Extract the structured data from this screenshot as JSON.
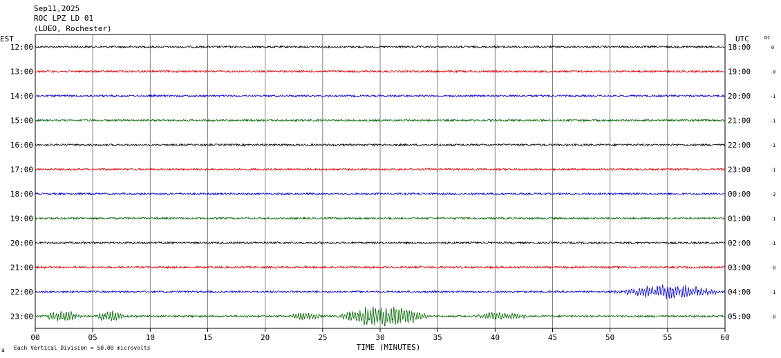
{
  "header": {
    "date": "Sep11,2025",
    "station": "ROC LPZ LD 01",
    "network": "(LDEO, Rochester)"
  },
  "left_axis_label": "EST",
  "right_axis_label": "UTC",
  "dc_label": "DC",
  "footer": {
    "scale_text": "Each Vertical Division =   50.00 microvolts",
    "corner_mark": "a"
  },
  "chart_data": {
    "type": "line",
    "xlabel": "TIME (MINUTES)",
    "xlim": [
      0,
      60
    ],
    "x_ticks": [
      "00",
      "05",
      "10",
      "15",
      "20",
      "25",
      "30",
      "35",
      "40",
      "45",
      "50",
      "55",
      "60"
    ],
    "rows": [
      {
        "est": "12:00",
        "utc": "18:00",
        "dc": "0",
        "color": "#000000",
        "events": []
      },
      {
        "est": "13:00",
        "utc": "19:00",
        "dc": "-0",
        "color": "#dd0000",
        "events": []
      },
      {
        "est": "14:00",
        "utc": "20:00",
        "dc": "-1",
        "color": "#0000cc",
        "events": []
      },
      {
        "est": "15:00",
        "utc": "21:00",
        "dc": "-1",
        "color": "#006400",
        "events": []
      },
      {
        "est": "16:00",
        "utc": "22:00",
        "dc": "-1",
        "color": "#000000",
        "events": []
      },
      {
        "est": "17:00",
        "utc": "23:00",
        "dc": "-1",
        "color": "#dd0000",
        "events": []
      },
      {
        "est": "18:00",
        "utc": "00:00",
        "dc": "-3",
        "color": "#0000cc",
        "events": []
      },
      {
        "est": "19:00",
        "utc": "01:00",
        "dc": "-1",
        "color": "#006400",
        "events": []
      },
      {
        "est": "20:00",
        "utc": "02:00",
        "dc": "-1",
        "color": "#000000",
        "events": []
      },
      {
        "est": "21:00",
        "utc": "03:00",
        "dc": "-0",
        "color": "#dd0000",
        "events": []
      },
      {
        "est": "22:00",
        "utc": "04:00",
        "dc": "-1",
        "color": "#0000cc",
        "events": [
          {
            "start": 50,
            "end": 60,
            "amp": 0.6
          }
        ]
      },
      {
        "est": "23:00",
        "utc": "05:00",
        "dc": "-0",
        "color": "#006400",
        "events": [
          {
            "start": 0.5,
            "end": 4,
            "amp": 0.5
          },
          {
            "start": 5,
            "end": 8,
            "amp": 0.45
          },
          {
            "start": 22,
            "end": 25,
            "amp": 0.35
          },
          {
            "start": 26,
            "end": 34.5,
            "amp": 0.9
          },
          {
            "start": 38,
            "end": 43,
            "amp": 0.35
          }
        ]
      }
    ]
  }
}
